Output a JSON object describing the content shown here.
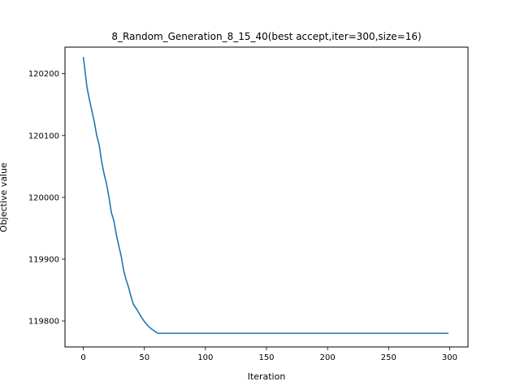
{
  "chart_data": {
    "type": "line",
    "title": "8_Random_Generation_8_15_40(best accept,iter=300,size=16)",
    "xlabel": "Iteration",
    "ylabel": "Objective value",
    "xlim": [
      -15,
      315
    ],
    "ylim": [
      119758,
      120243
    ],
    "xticks": [
      0,
      50,
      100,
      150,
      200,
      250,
      300
    ],
    "yticks": [
      119800,
      119900,
      120000,
      120100,
      120200
    ],
    "grid": false,
    "legend": "none",
    "series": [
      {
        "color": "#1f77b4",
        "x": [
          0,
          3,
          5,
          7,
          9,
          11,
          13,
          15,
          17,
          19,
          21,
          23,
          25,
          27,
          29,
          31,
          33,
          35,
          37,
          39,
          41,
          44,
          47,
          50,
          54,
          58,
          61,
          62,
          100,
          150,
          200,
          250,
          299
        ],
        "y": [
          120227,
          120178,
          120158,
          120140,
          120122,
          120100,
          120085,
          120058,
          120038,
          120022,
          120000,
          119975,
          119962,
          119940,
          119922,
          119905,
          119882,
          119867,
          119855,
          119840,
          119827,
          119818,
          119808,
          119799,
          119790,
          119784,
          119780,
          119780,
          119780,
          119780,
          119780,
          119780,
          119780
        ]
      }
    ]
  }
}
